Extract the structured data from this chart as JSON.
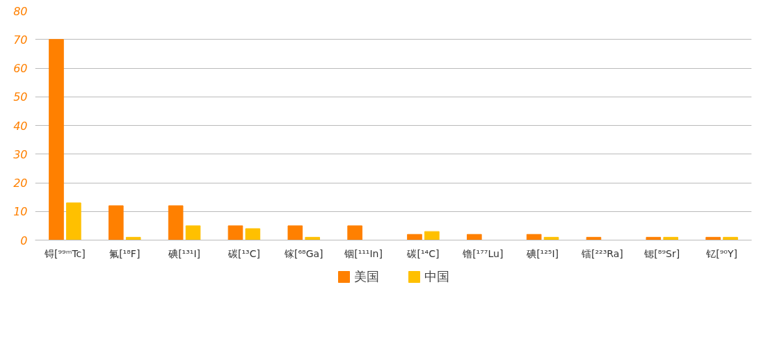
{
  "chart_data": {
    "type": "bar",
    "categories": [
      "锝[⁹⁹ᵐTc]",
      "氟[¹⁸F]",
      "碘[¹³¹I]",
      "碳[¹³C]",
      "镓[⁶⁸Ga]",
      "铟[¹¹¹In]",
      "碳[¹⁴C]",
      "镥[¹⁷⁷Lu]",
      "碘[¹²⁵I]",
      "镭[²²³Ra]",
      "锶[⁸⁹Sr]",
      "钇[⁹⁰Y]"
    ],
    "series": [
      {
        "name": "美国",
        "color": "#ff8000",
        "values": [
          70,
          12,
          12,
          5,
          5,
          5,
          2,
          2,
          2,
          1,
          1,
          1
        ]
      },
      {
        "name": "中国",
        "color": "#ffc000",
        "values": [
          13,
          1,
          5,
          4,
          1,
          null,
          3,
          null,
          1,
          null,
          1,
          1
        ]
      }
    ],
    "ylim": [
      0,
      80
    ],
    "yticks": [
      0,
      10,
      20,
      30,
      40,
      50,
      60,
      70,
      80
    ],
    "grid": "y",
    "legend": "bottom"
  }
}
